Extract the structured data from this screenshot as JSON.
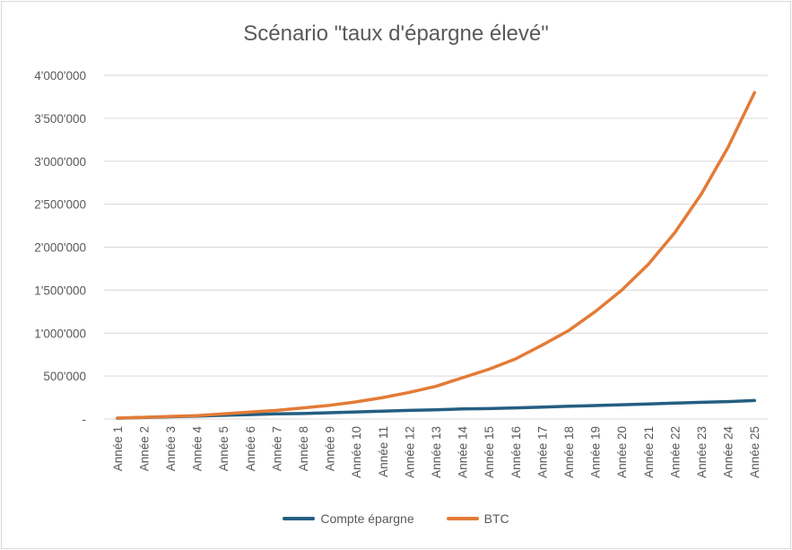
{
  "chart_data": {
    "type": "line",
    "title": "Scénario \"taux d'épargne élevé\"",
    "xlabel": "",
    "ylabel": "",
    "ylim": [
      0,
      4000000
    ],
    "yticks": [
      0,
      500000,
      1000000,
      1500000,
      2000000,
      2500000,
      3000000,
      3500000,
      4000000
    ],
    "ytick_labels": [
      "-",
      "500'000",
      "1'000'000",
      "1'500'000",
      "2'000'000",
      "2'500'000",
      "3'000'000",
      "3'500'000",
      "4'000'000"
    ],
    "grid": true,
    "legend": "bottom",
    "categories": [
      "Année 1",
      "Année 2",
      "Année 3",
      "Année 4",
      "Année 5",
      "Année 6",
      "Année 7",
      "Année 8",
      "Année 9",
      "Année 10",
      "Année 11",
      "Année 12",
      "Année 13",
      "Année 14",
      "Année 15",
      "Année 16",
      "Année 17",
      "Année 18",
      "Année 19",
      "Année 20",
      "Année 21",
      "Année 22",
      "Année 23",
      "Année 24",
      "Année 25"
    ],
    "series": [
      {
        "name": "Compte épargne",
        "color": "#255e81",
        "values": [
          9000,
          18000,
          26000,
          34000,
          43000,
          51000,
          60000,
          64000,
          73000,
          82000,
          91000,
          100000,
          108000,
          117000,
          121000,
          130000,
          139000,
          148000,
          157000,
          166000,
          175000,
          185000,
          194000,
          203000,
          215000
        ]
      },
      {
        "name": "BTC",
        "color": "#e37b36",
        "values": [
          10000,
          20000,
          30000,
          40000,
          60000,
          80000,
          100000,
          130000,
          160000,
          200000,
          250000,
          310000,
          380000,
          480000,
          580000,
          700000,
          860000,
          1030000,
          1250000,
          1500000,
          1800000,
          2170000,
          2620000,
          3160000,
          3800000
        ]
      }
    ]
  }
}
